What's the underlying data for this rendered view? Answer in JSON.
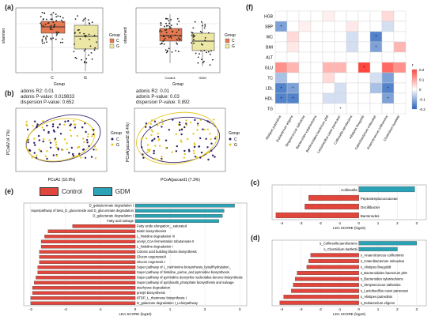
{
  "labels": {
    "a": "(a)",
    "b": "(b)",
    "c": "(c)",
    "d": "(d)",
    "e": "(e)",
    "f": "(f)"
  },
  "panel_a": {
    "left": {
      "ylabel": "shannon",
      "xlabel": "Group",
      "ticks": [
        "C",
        "G"
      ]
    },
    "right": {
      "ylabel": "observed",
      "xlabel": "Group",
      "ticks": [
        "Control",
        "GDM"
      ]
    },
    "legend_title": "Group",
    "legend_items": [
      "C",
      "G"
    ],
    "colors": {
      "C": "#e8784f",
      "G": "#ede7a6"
    }
  },
  "panel_b": {
    "left": {
      "stats": [
        "adonis R2: 0.01",
        "adonis P-value: 0.019833",
        "dispersion P-value: 0.652"
      ],
      "xlabel": "PCoA1 (10.9%)",
      "ylabel": "PCoA2 (4.7%)"
    },
    "right": {
      "stats": [
        "adonis R2: 0.01",
        "adonis P-value: 0.03",
        "dispersion P-value: 0.892"
      ],
      "xlabel": "PCoA(jaccard1 (7.3%)",
      "ylabel": "PCoA(jaccard2 (6.4%)"
    },
    "legend_title": "Group",
    "legend_items": [
      "C",
      "G"
    ]
  },
  "panel_e": {
    "legend": [
      "Control",
      "GDM"
    ],
    "colors": {
      "Control": "#e0463c",
      "GDM": "#2ba3b6"
    },
    "xlabel": "LDA SCORE (log10)",
    "chart_data": {
      "type": "bar",
      "categories": [
        "D_galacturonate degradation I",
        "Superpathway of beta_D_glucuronide and D_glucuronate degradation",
        "D_galactarate degradation I",
        "Fatty acid salvage",
        "Fatty acide elongation__saturated",
        "Biotin biosynthesisII",
        "L_histidine degradation III",
        "acetyl_CoA fermentation tobutanoate II",
        "L_histidine degradation I",
        "Colonic acid building blocks biosynthesis",
        "Glucon eogenesisIII",
        "Glucon eogenesis I",
        "Super pathway of L_methionine biosynthesis_bysulfhydrylation_",
        "Super pathway of histidine_purine_and pyrimidine biosynthesis",
        "Super pathway of pyrimidine deoxyribo nucleotides denovo biosynthesis",
        "Super pathway of pyridoxal5_phosphate biosynthesis and salvage",
        "stachyose degradation",
        "preQ0 biosynthesis",
        "dTDP_L_rhamnose biosynthesis I",
        "D_galactose degradation I_Leloirpathway"
      ],
      "values": [
        2.85,
        2.55,
        2.5,
        2.4,
        -1.8,
        -2.5,
        -2.6,
        -2.7,
        -2.7,
        -2.75,
        -2.75,
        -2.75,
        -2.8,
        -2.8,
        -2.85,
        -2.9,
        -2.95,
        -2.95,
        -3.0,
        -3.0
      ],
      "ticks": [
        -3,
        -2,
        -1,
        0,
        1,
        2,
        3
      ],
      "xlim": [
        -3.2,
        3.2
      ]
    }
  },
  "panel_c": {
    "xlabel": "LDA SCORE (log10)",
    "chart_data": {
      "type": "bar",
      "categories": [
        "Collinsella",
        "Peptostreptococcaceae",
        "Oscillibacter",
        "Bacteroides"
      ],
      "values": [
        2.9,
        -2.6,
        -2.8,
        -4.3
      ],
      "ticks": [
        -4,
        -3,
        -2,
        -1,
        0,
        1,
        2,
        3
      ],
      "xlim": [
        -4.5,
        3.5
      ]
    }
  },
  "panel_d": {
    "xlabel": "LDA SCORE (log10)",
    "chart_data": {
      "type": "bar",
      "categories": [
        "s_Collinsella aerofaciens",
        "s_Clostridium bartlettii",
        "s_Anaerotruncus colihominis",
        "s_Catenibacterium mitsuokai",
        "s_Alistipes finegoldii",
        "s_Bacteroidales bacterium ph8",
        "s_Bacteroides xylanisolvens",
        "s_Streptococcus salivarius",
        "s_Lactobacillus casei paracasei",
        "s_Alistipes putredinis",
        "s_Eubacterium eligens"
      ],
      "values": [
        3.0,
        2.0,
        -2.5,
        -2.6,
        -2.7,
        -3.2,
        -3.3,
        -3.4,
        -3.5,
        -3.9,
        -4.1
      ],
      "ticks": [
        -4,
        -3,
        -2,
        -1,
        0,
        1,
        2,
        3
      ],
      "xlim": [
        -4.5,
        3.5
      ]
    }
  },
  "panel_f": {
    "rows": [
      "HGB",
      "SBP",
      "WC",
      "BMI",
      "ALT",
      "GLU",
      "TC",
      "LDL",
      "HDL",
      "TG"
    ],
    "cols": [
      "Alistipes putredinis",
      "Eubacterium eligens",
      "Streptococcus salivarius",
      "Bacteroides xylanisolvens",
      "Bacteroidales bacterium ph8",
      "Lactobacillus casei paracasei",
      "Collinsella aerofaciens",
      "Alistipes finegoldii",
      "Catenibacterium mitsuokai",
      "Anaerotruncus colihominis",
      "Clostridium bartlettii"
    ],
    "legend_title": "r",
    "legend_ticks": [
      "0.2",
      "0.1",
      "0",
      "-0.1",
      "-0.2"
    ],
    "chart_data": {
      "type": "heatmap",
      "values": [
        [
          0,
          0,
          0,
          0,
          0.02,
          0,
          0,
          0,
          0,
          0.05,
          0
        ],
        [
          -0.15,
          0,
          0.02,
          0,
          0,
          0,
          0.03,
          0,
          0,
          -0.05,
          0
        ],
        [
          0,
          0.05,
          0,
          0,
          0,
          0,
          -0.05,
          0,
          -0.2,
          0,
          0
        ],
        [
          0,
          0.03,
          0,
          0,
          0,
          0,
          -0.05,
          0,
          -0.15,
          0,
          0.1
        ],
        [
          0,
          0,
          0,
          0,
          0,
          0,
          0,
          0,
          0,
          0,
          0
        ],
        [
          0.15,
          0.1,
          0,
          0,
          0.1,
          0.1,
          0,
          0.25,
          0,
          0.2,
          0.15
        ],
        [
          -0.1,
          0,
          0,
          0,
          0.05,
          0,
          0,
          0,
          -0.05,
          -0.15,
          0
        ],
        [
          -0.2,
          -0.15,
          0,
          0,
          0,
          -0.05,
          0,
          0,
          -0.1,
          -0.2,
          0
        ],
        [
          -0.2,
          -0.2,
          0,
          0,
          -0.05,
          -0.05,
          0,
          0,
          0,
          -0.15,
          0
        ],
        [
          0,
          0,
          0,
          0,
          0,
          0,
          0,
          0,
          0,
          0,
          0
        ]
      ],
      "stars": [
        [
          1,
          0
        ],
        [
          2,
          8
        ],
        [
          3,
          8
        ],
        [
          5,
          7
        ],
        [
          7,
          0
        ],
        [
          7,
          1
        ],
        [
          7,
          9
        ],
        [
          8,
          0
        ],
        [
          8,
          1
        ],
        [
          8,
          9
        ],
        [
          9,
          5
        ]
      ]
    }
  }
}
